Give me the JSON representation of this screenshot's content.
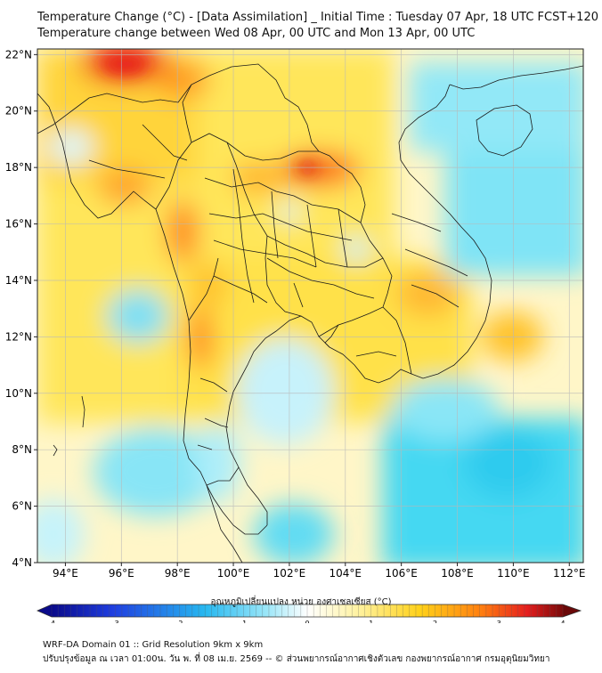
{
  "header": {
    "title_line1": "Temperature Change (°C) - [Data Assimilation] _ Initial Time : Tuesday 07 Apr, 18 UTC FCST+120",
    "title_line2": "Temperature change between Wed 08 Apr, 00 UTC and Mon 13 Apr, 00 UTC"
  },
  "map": {
    "lat_labels": [
      "22°N",
      "20°N",
      "18°N",
      "16°N",
      "14°N",
      "12°N",
      "10°N",
      "8°N",
      "6°N",
      "4°N"
    ],
    "lon_labels": [
      "94°E",
      "96°E",
      "98°E",
      "100°E",
      "102°E",
      "104°E",
      "106°E",
      "108°E",
      "110°E",
      "112°E"
    ],
    "lat_values": [
      22,
      20,
      18,
      16,
      14,
      12,
      10,
      8,
      6,
      4
    ],
    "lon_values": [
      94,
      96,
      98,
      100,
      102,
      104,
      106,
      108,
      110,
      112
    ],
    "colors": {
      "cold_cyan": "#3fd6f2",
      "light_cyan": "#bff0fa",
      "pale": "#fff7c2",
      "yellow": "#ffe24a",
      "orange": "#ffb020",
      "red": "#f03a1c"
    }
  },
  "colorbar": {
    "title": "อุณหภูมิเปลี่ยนแปลง หน่วย องศาเซลเซียส (°C)",
    "tick_labels": [
      "-4",
      "-3",
      "-2",
      "-1",
      "0",
      "1",
      "2",
      "3",
      "4"
    ],
    "range": [
      -4,
      4
    ]
  },
  "footer": {
    "line1": "WRF-DA Domain 01 :: Grid Resolution 9km x 9km",
    "line2": "ปรับปรุงข้อมูล ณ เวลา 01:00น. วัน พ. ที่ 08 เม.ย. 2569 -- © ส่วนพยากรณ์อากาศเชิงตัวเลข กองพยากรณ์อากาศ กรมอุตุนิยมวิทยา"
  }
}
